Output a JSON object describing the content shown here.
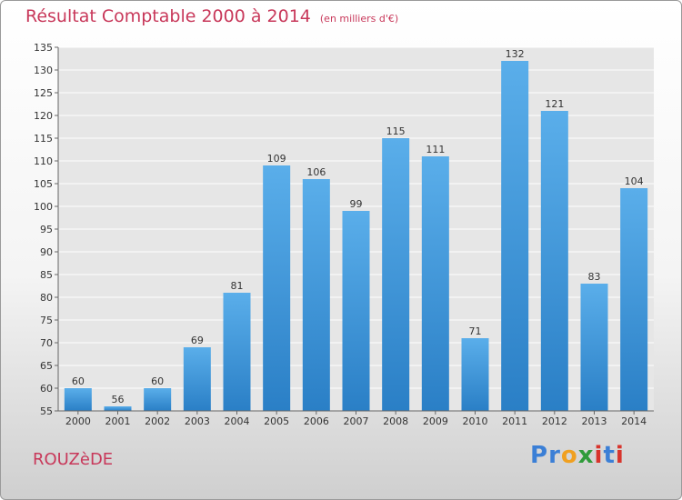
{
  "title": "Résultat Comptable 2000 à 2014",
  "unit": "(en milliers d'€)",
  "commune": "ROUZèDE",
  "logo": {
    "letters": [
      "P",
      "r",
      "o",
      "x",
      "i",
      "t",
      "i"
    ],
    "colors": [
      "#3b7fd6",
      "#3b7fd6",
      "#f0a020",
      "#2f9b3a",
      "#d8342c",
      "#3b7fd6",
      "#d8342c"
    ]
  },
  "chart_data": {
    "type": "bar",
    "title": "Résultat Comptable 2000 à 2014",
    "categories": [
      "2000",
      "2001",
      "2002",
      "2003",
      "2004",
      "2005",
      "2006",
      "2007",
      "2008",
      "2009",
      "2010",
      "2011",
      "2012",
      "2013",
      "2014"
    ],
    "values": [
      60,
      56,
      60,
      69,
      81,
      109,
      106,
      99,
      115,
      111,
      71,
      132,
      121,
      83,
      104
    ],
    "ylim": [
      55,
      135
    ],
    "yticks": [
      55,
      60,
      65,
      70,
      75,
      80,
      85,
      90,
      95,
      100,
      105,
      110,
      115,
      120,
      125,
      130,
      135
    ],
    "grid": true,
    "bar_color": "#4a9fdf"
  }
}
